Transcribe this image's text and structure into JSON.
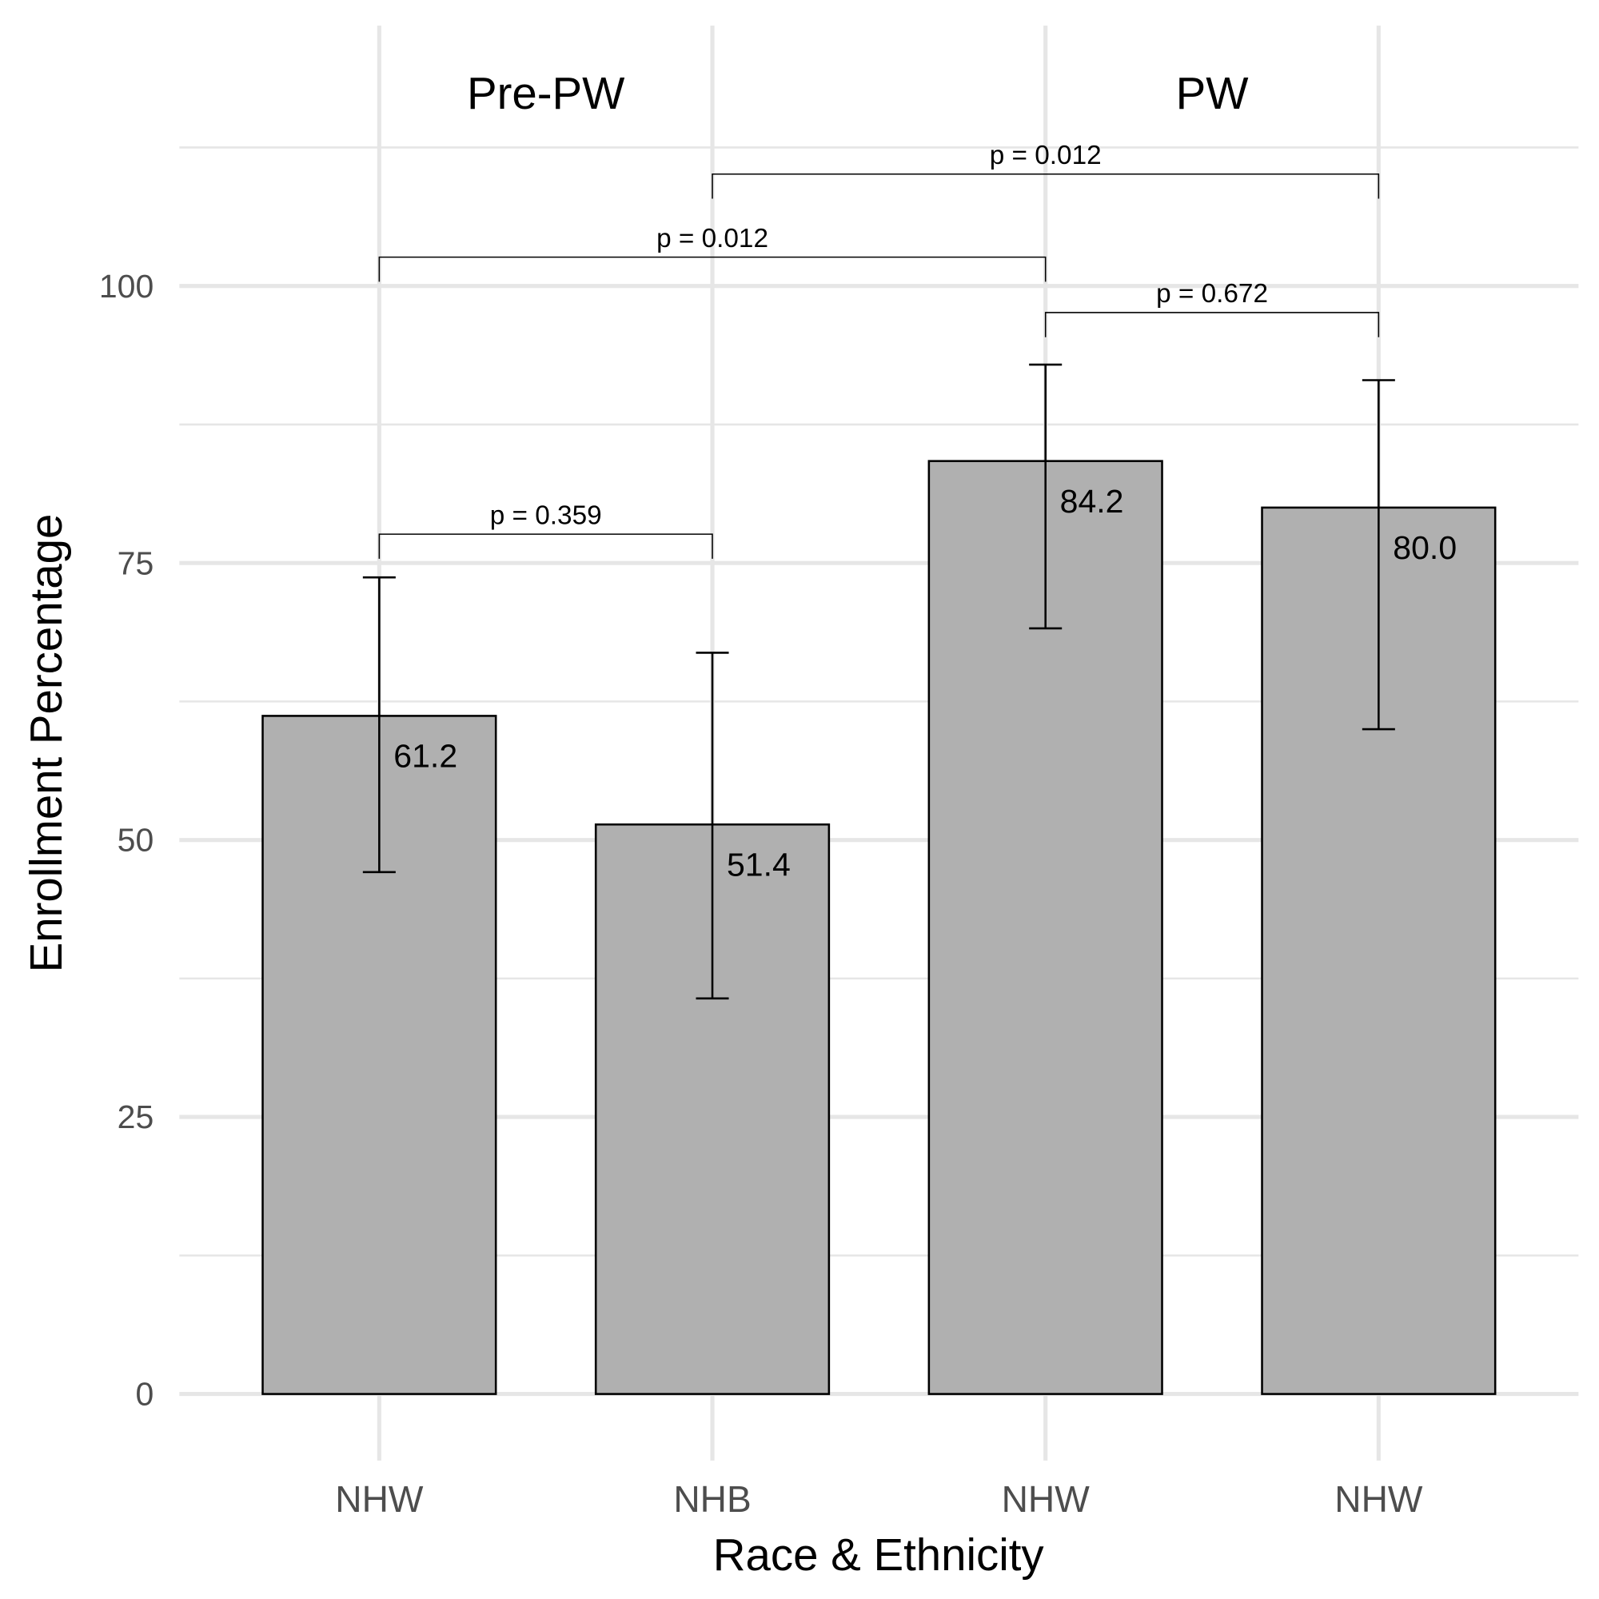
{
  "chart_data": {
    "type": "bar",
    "xlabel": "Race & Ethnicity",
    "ylabel": "Enrollment Percentage",
    "ylim": [
      -6,
      124
    ],
    "yticks": [
      0,
      25,
      50,
      75,
      100
    ],
    "ytick_labels": [
      "0",
      "25",
      "50",
      "75",
      "100"
    ],
    "grid": true,
    "categories": [
      "NHW",
      "NHB",
      "NHW",
      "NHW"
    ],
    "values": [
      61.2,
      51.4,
      84.2,
      80.0
    ],
    "value_labels": [
      "61.2",
      "51.4",
      "84.2",
      "80.0"
    ],
    "error_bars": [
      {
        "low": 47.1,
        "high": 73.7
      },
      {
        "low": 35.7,
        "high": 66.9
      },
      {
        "low": 69.1,
        "high": 92.9
      },
      {
        "low": 60.0,
        "high": 91.5
      }
    ],
    "group_labels": [
      {
        "label": "Pre-PW",
        "categories": [
          0,
          1
        ]
      },
      {
        "label": "PW",
        "categories": [
          2,
          3
        ]
      }
    ],
    "comparisons": [
      {
        "from": 0,
        "to": 1,
        "y": 77.6,
        "label": "p = 0.359"
      },
      {
        "from": 0,
        "to": 2,
        "y": 102.6,
        "label": "p = 0.012"
      },
      {
        "from": 1,
        "to": 3,
        "y": 110.1,
        "label": "p = 0.012"
      },
      {
        "from": 2,
        "to": 3,
        "y": 97.6,
        "label": "p = 0.672"
      }
    ],
    "colors": {
      "bar": "#b0b0b0",
      "bar_outline": "#000000",
      "grid": "#e6e6e6"
    }
  }
}
